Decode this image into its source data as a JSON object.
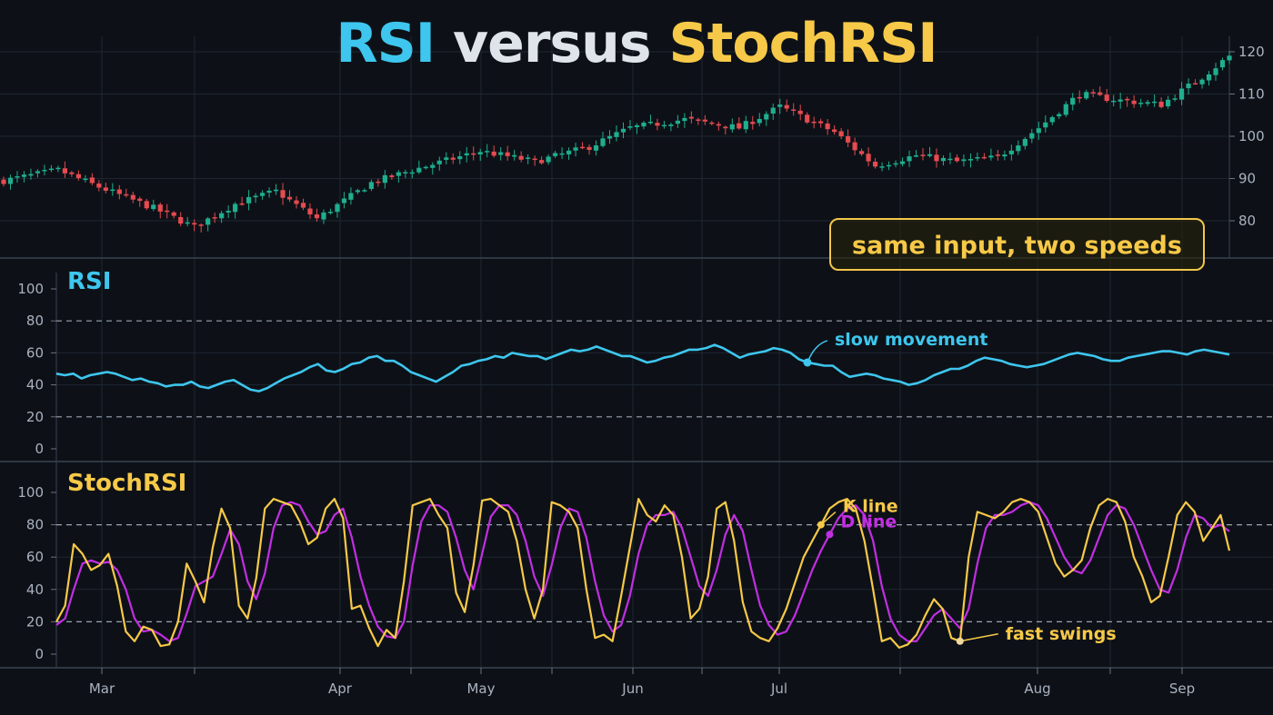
{
  "title": {
    "part1": "RSI",
    "part2": "versus",
    "part3": "StochRSI"
  },
  "callout": "same input, two speeds",
  "colors": {
    "background": "#0d1117",
    "up": "#1fae8e",
    "down": "#e54b50",
    "rsi": "#3ec6ee",
    "k_line": "#f7c948",
    "d_line": "#c22ee3",
    "grid": "#1f2631"
  },
  "chart_data": [
    {
      "type": "candlestick",
      "title": "",
      "ylim": [
        70,
        122
      ],
      "yticks": [
        80,
        90,
        100,
        110,
        120
      ],
      "close_path": [
        [
          0,
          89.5
        ],
        [
          8,
          92
        ],
        [
          14,
          88
        ],
        [
          22,
          83
        ],
        [
          28,
          78.5
        ],
        [
          34,
          84
        ],
        [
          40,
          87
        ],
        [
          46,
          80.5
        ],
        [
          54,
          89
        ],
        [
          60,
          92
        ],
        [
          70,
          96.5
        ],
        [
          78,
          94
        ],
        [
          86,
          97.5
        ],
        [
          92,
          102
        ],
        [
          100,
          104
        ],
        [
          108,
          102
        ],
        [
          114,
          107
        ],
        [
          122,
          101
        ],
        [
          128,
          93
        ],
        [
          134,
          95.5
        ],
        [
          140,
          94
        ],
        [
          146,
          95
        ],
        [
          152,
          102
        ],
        [
          158,
          110
        ],
        [
          164,
          108.5
        ],
        [
          170,
          107.5
        ],
        [
          176,
          114
        ],
        [
          180,
          119
        ]
      ]
    },
    {
      "type": "line",
      "title": "RSI",
      "ylim": [
        0,
        110
      ],
      "yticks": [
        0,
        20,
        40,
        60,
        80,
        100
      ],
      "reference_lines": [
        20,
        80
      ],
      "series": [
        {
          "name": "RSI",
          "values": [
            47,
            46,
            47,
            44,
            46,
            47,
            48,
            47,
            45,
            43,
            44,
            42,
            41,
            39,
            40,
            40,
            42,
            39,
            38,
            40,
            42,
            43,
            40,
            37,
            36,
            38,
            41,
            44,
            46,
            48,
            51,
            53,
            49,
            48,
            50,
            53,
            54,
            57,
            58,
            55,
            55,
            52,
            48,
            46,
            44,
            42,
            45,
            48,
            52,
            53,
            55,
            56,
            58,
            57,
            60,
            59,
            58,
            58,
            56,
            58,
            60,
            62,
            61,
            62,
            64,
            62,
            60,
            58,
            58,
            56,
            54,
            55,
            57,
            58,
            60,
            62,
            62,
            63,
            65,
            63,
            60,
            57,
            59,
            60,
            61,
            63,
            62,
            60,
            56,
            54,
            53,
            52,
            52,
            48,
            45,
            46,
            47,
            46,
            44,
            43,
            42,
            40,
            41,
            43,
            46,
            48,
            50,
            50,
            52,
            55,
            57,
            56,
            55,
            53,
            52,
            51,
            52,
            53,
            55,
            57,
            59,
            60,
            59,
            58,
            56,
            55,
            55,
            57,
            58,
            59,
            60,
            61,
            61,
            60,
            59,
            61,
            62,
            61,
            60,
            59
          ]
        }
      ],
      "annotations": [
        {
          "text": "slow movement",
          "x_index": 89
        }
      ]
    },
    {
      "type": "line",
      "title": "StochRSI",
      "ylim": [
        0,
        110
      ],
      "yticks": [
        0,
        20,
        40,
        60,
        80,
        100
      ],
      "reference_lines": [
        20,
        80
      ],
      "series": [
        {
          "name": "K line",
          "values": [
            20,
            30,
            68,
            62,
            52,
            55,
            62,
            42,
            14,
            8,
            17,
            15,
            5,
            6,
            20,
            56,
            45,
            32,
            66,
            90,
            78,
            30,
            22,
            47,
            90,
            96,
            94,
            92,
            82,
            68,
            72,
            90,
            96,
            84,
            28,
            30,
            16,
            5,
            15,
            10,
            45,
            92,
            94,
            96,
            86,
            78,
            38,
            26,
            55,
            95,
            96,
            92,
            88,
            70,
            40,
            22,
            40,
            94,
            92,
            88,
            78,
            40,
            10,
            12,
            8,
            36,
            66,
            96,
            86,
            82,
            92,
            86,
            60,
            22,
            28,
            48,
            90,
            94,
            70,
            32,
            14,
            10,
            8,
            16,
            28,
            44,
            60,
            70,
            80,
            90,
            94,
            96,
            90,
            70,
            40,
            8,
            10,
            4,
            6,
            12,
            24,
            34,
            28,
            10,
            8,
            60,
            88,
            86,
            84,
            88,
            94,
            96,
            94,
            88,
            72,
            56,
            48,
            52,
            58,
            78,
            92,
            96,
            94,
            82,
            60,
            48,
            32,
            36,
            60,
            86,
            94,
            88,
            70,
            78,
            86,
            64
          ]
        },
        {
          "name": "D line",
          "values": [
            18,
            22,
            40,
            56,
            58,
            56,
            57,
            52,
            40,
            22,
            14,
            15,
            12,
            8,
            10,
            25,
            42,
            45,
            48,
            62,
            77,
            68,
            45,
            34,
            50,
            78,
            92,
            94,
            92,
            82,
            74,
            76,
            86,
            90,
            72,
            48,
            30,
            17,
            11,
            10,
            20,
            55,
            82,
            92,
            92,
            88,
            72,
            52,
            40,
            62,
            85,
            92,
            92,
            86,
            70,
            48,
            36,
            55,
            78,
            90,
            88,
            72,
            45,
            24,
            14,
            18,
            36,
            62,
            80,
            86,
            86,
            88,
            78,
            60,
            42,
            36,
            52,
            74,
            86,
            76,
            52,
            30,
            18,
            12,
            14,
            24,
            38,
            52,
            64,
            74,
            84,
            90,
            92,
            86,
            70,
            42,
            22,
            12,
            8,
            8,
            16,
            24,
            28,
            22,
            16,
            28,
            56,
            78,
            86,
            86,
            88,
            92,
            94,
            92,
            84,
            72,
            60,
            52,
            50,
            58,
            72,
            86,
            92,
            90,
            80,
            66,
            52,
            40,
            38,
            52,
            72,
            86,
            84,
            78,
            80,
            76
          ]
        }
      ],
      "annotations": [
        {
          "text": "K line",
          "x_index": 88
        },
        {
          "text": "D line",
          "x_index": 89
        },
        {
          "text": "fast swings",
          "x_index": 104
        }
      ]
    }
  ],
  "x_axis": {
    "labels": [
      "Mar",
      "Apr",
      "May",
      "Jun",
      "Jul",
      "Aug",
      "Sep"
    ]
  },
  "panel_labels": {
    "rsi": "RSI",
    "stoch": "StochRSI"
  },
  "annotations": {
    "slow": "slow movement",
    "k": "K line",
    "d": "D line",
    "fast": "fast swings"
  }
}
